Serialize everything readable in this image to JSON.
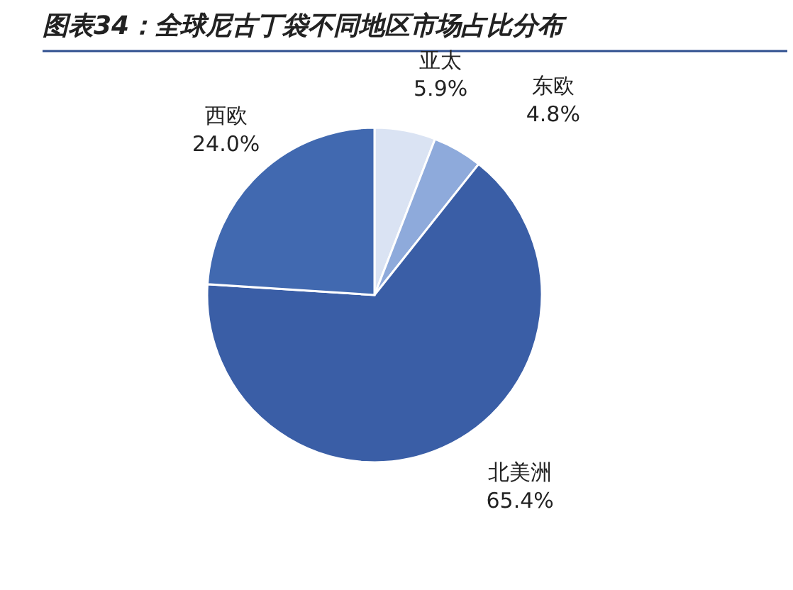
{
  "chart_data": {
    "type": "pie",
    "title": "图表34：全球尼古丁袋不同地区市场占比分布",
    "categories": [
      "亚太",
      "东欧",
      "北美洲",
      "西欧"
    ],
    "values": [
      5.9,
      4.8,
      65.4,
      24.0
    ],
    "colors": [
      "#dae3f3",
      "#8eaadb",
      "#3a5ea6",
      "#4169b0"
    ],
    "value_labels": [
      "5.9%",
      "4.8%",
      "65.4%",
      "24.0%"
    ]
  }
}
